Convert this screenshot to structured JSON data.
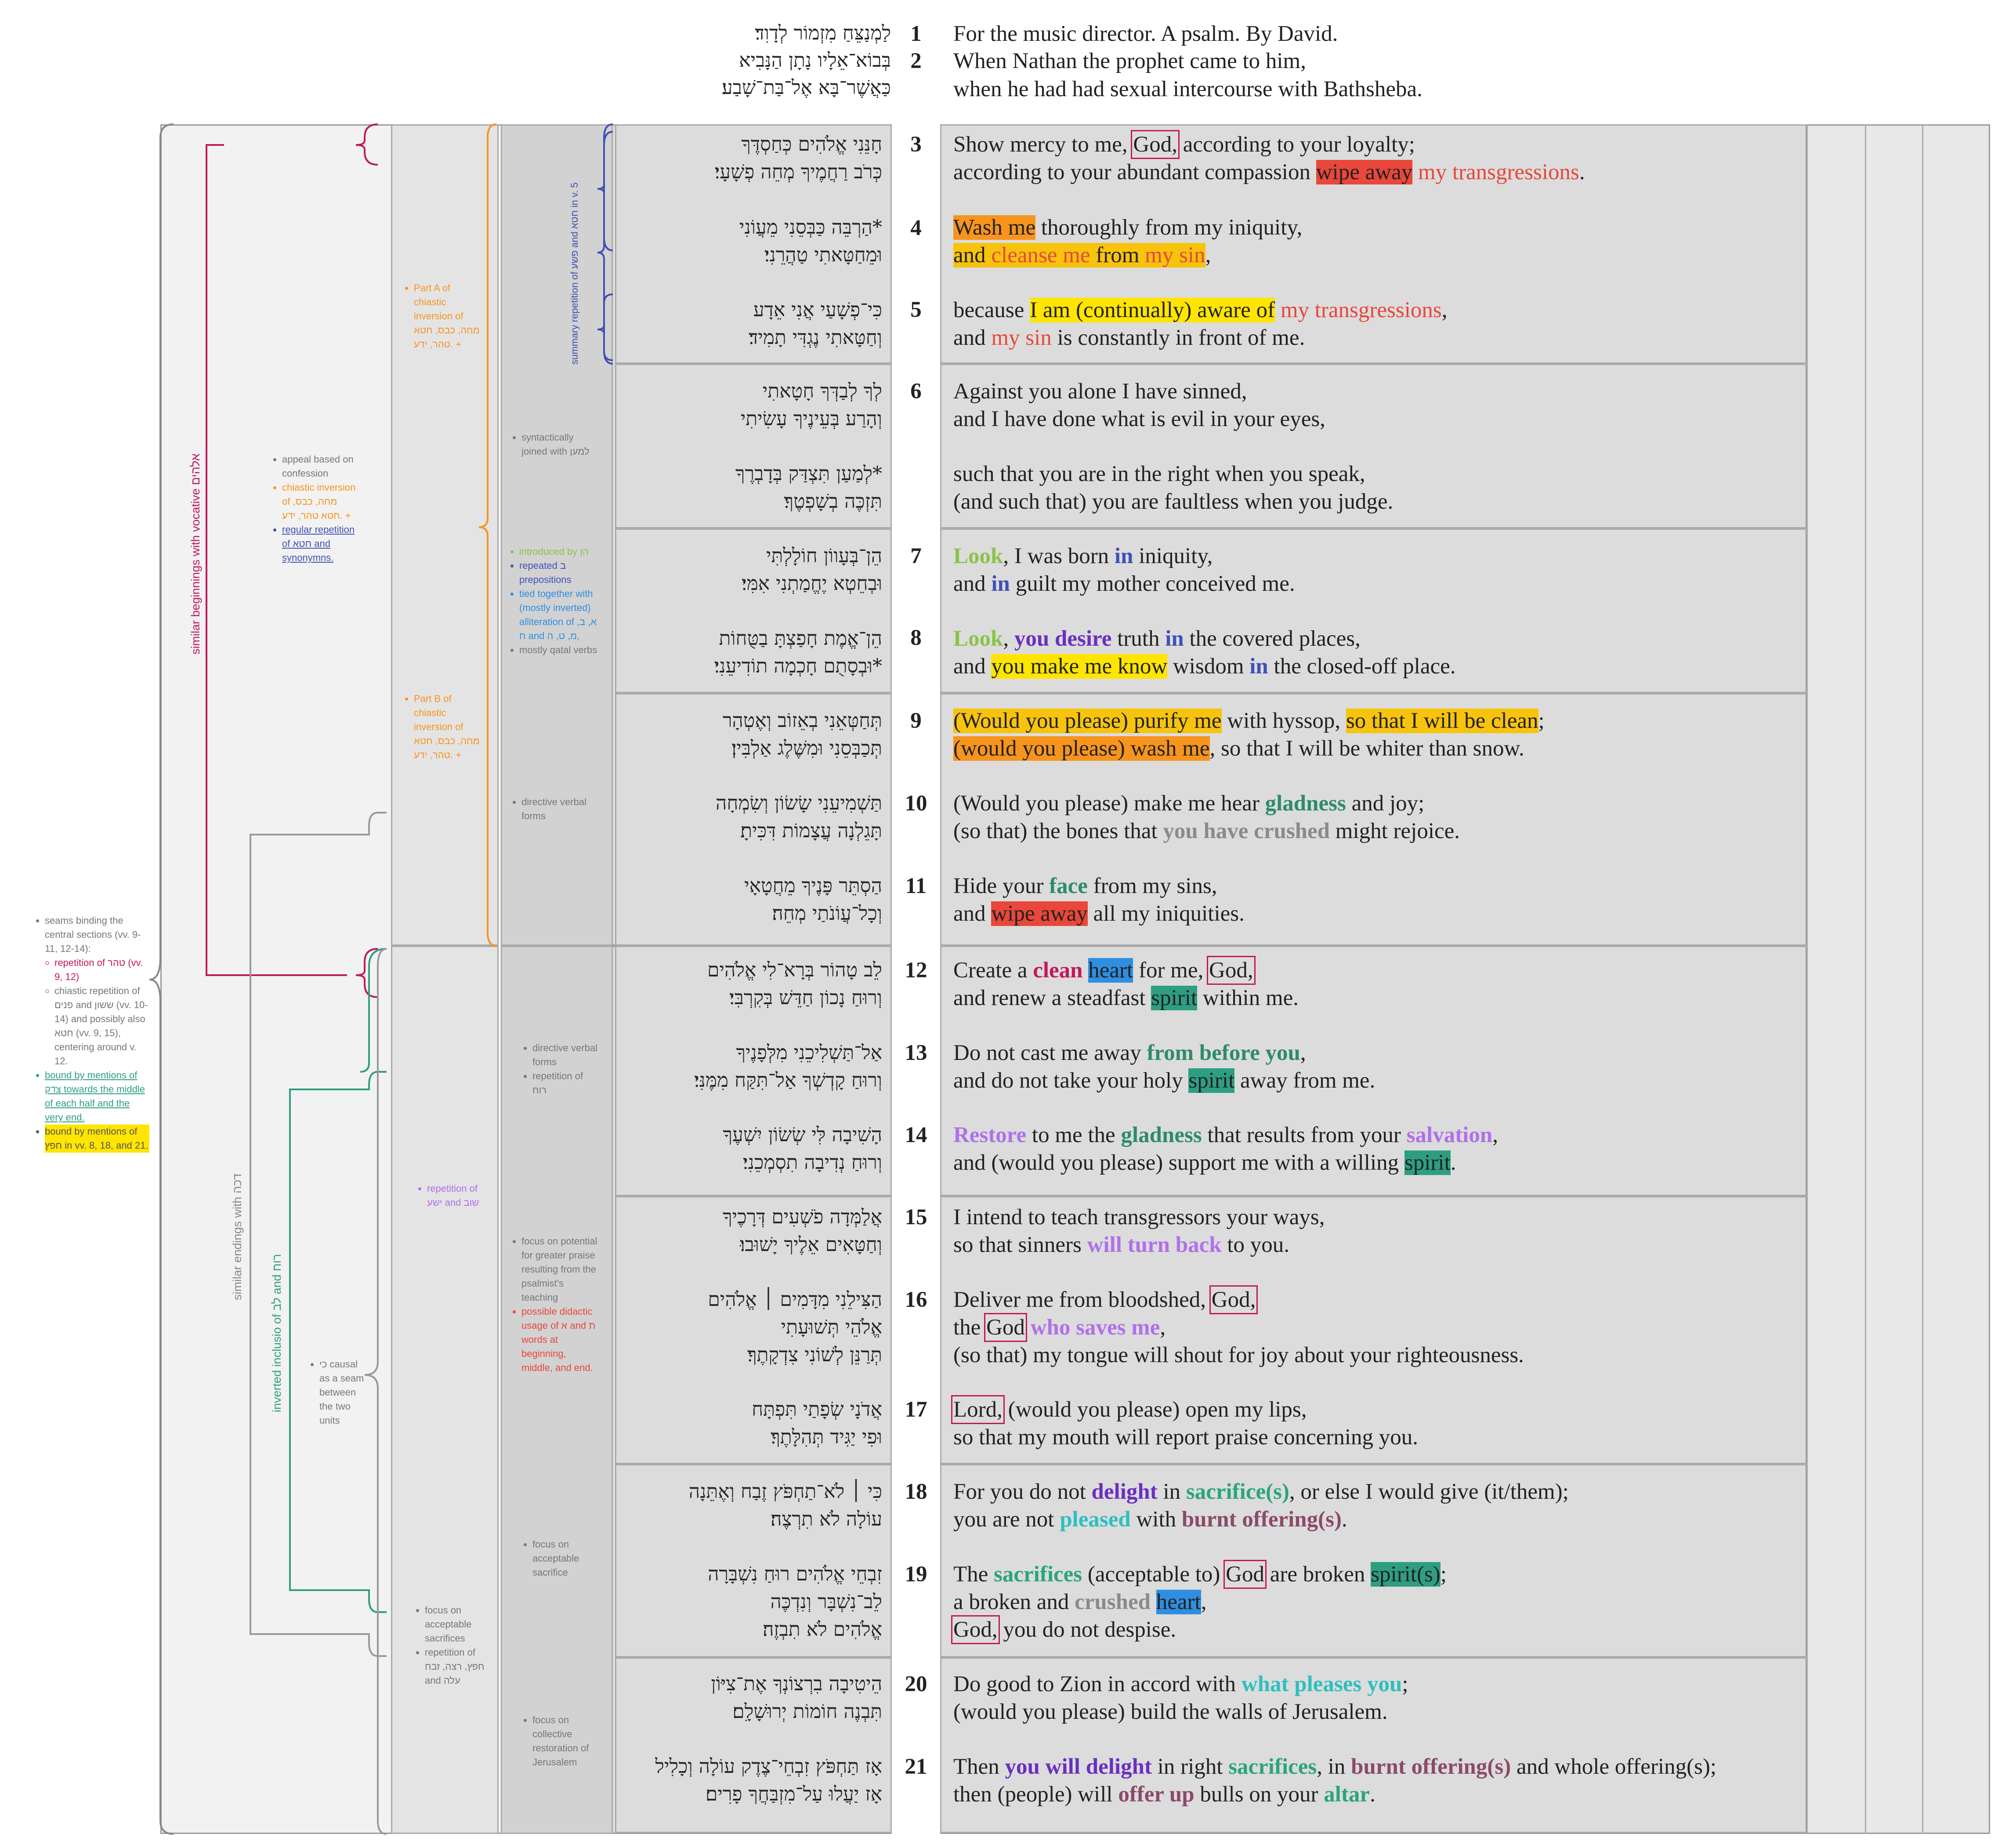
{
  "header": [
    {
      "n": "1",
      "he": "לַמְנַצֵּחַ מִזְמוֹר לְדָוִד׃",
      "en": "For the music director. A psalm. By David."
    },
    {
      "n": "2",
      "he": "בְּבוֹא־אֵלָיו נָתָן הַנָּבִיא",
      "en": "When Nathan the prophet came to him,"
    },
    {
      "n": "",
      "he": "כַּאֲשֶׁר־בָּא אֶל־בַּת־שָׁבַע׃",
      "en": "when he had had sexual intercourse with Bathsheba."
    }
  ],
  "hebrew": {
    "v3": [
      "חָנֵּנִי אֱלֹהִים כְּחַסְדֶּךָ",
      "כְּרֹב רַחֲמֶיךָ מְחֵה פְשָׁעָי׃"
    ],
    "v4": [
      "*הַרְבֵּה כַּבְּסֵנִי מֵעֲוֹנִי",
      "וּמֵחַטָּאתִי טַהֲרֵנִי׃"
    ],
    "v5": [
      "כִּי־פְשָׁעַי אֲנִי אֵדָע",
      "וְחַטָּאתִי נֶגְדִּי תָמִיד׃"
    ],
    "v6a": [
      "לְךָ לְבַדְּךָ חָטָאתִי",
      "וְהָרַע בְּעֵינֶיךָ עָשִׂיתִי"
    ],
    "v6b": [
      "*לְמַעַן תִּצְדַּק בְּדָבְרֶךָ",
      "תִּזְכֶּה בְשָׁפְטֶךָ׃"
    ],
    "v7": [
      "הֵן־בְּעָווֹן חוֹלָלְתִּי",
      "וּבְחֵטְא יֶחֱמַתְנִי אִמִּי׃"
    ],
    "v8": [
      "הֵן־אֱמֶת חָפַצְתָּ בַטֻּחוֹת",
      "*וּבְסָתֻם חָכְמָה תוֹדִיעֵנִי׃"
    ],
    "v9": [
      "תְּחַטְּאֵנִי בְאֵזוֹב וְאֶטְהָר",
      "תְּכַבְּסֵנִי וּמִשֶּׁלֶג אַלְבִּין׃"
    ],
    "v10": [
      "תַּשְׁמִיעֵנִי שָׂשׂוֹן וְשִׂמְחָה",
      "תָּגֵלְנָה עֲצָמוֹת דִּכִּיתָ׃"
    ],
    "v11": [
      "הַסְתֵּר פָּנֶיךָ מֵחֲטָאָי",
      "וְכָל־עֲוֹנֹתַי מְחֵה׃"
    ],
    "v12": [
      "לֵב טָהוֹר בְּרָא־לִי אֱלֹהִים",
      "וְרוּחַ נָכוֹן חַדֵּשׁ בְּקִרְבִּי׃"
    ],
    "v13": [
      "אַל־תַּשְׁלִיכֵנִי מִלְּפָנֶיךָ",
      "וְרוּחַ קָדְשְׁךָ אַל־תִּקַּח מִמֶּנִּי׃"
    ],
    "v14": [
      "הָשִׁיבָה לִּי שְׂשׂוֹן יִשְׁעֶךָ",
      "וְרוּחַ נְדִיבָה תִסְמְכֵנִי׃"
    ],
    "v15": [
      "אֲלַמְּדָה פֹשְׁעִים דְּרָכֶיךָ",
      "וְחַטָּאִים אֵלֶיךָ יָשׁוּבוּ׃"
    ],
    "v16": [
      "הַצִּילֵנִי מִדָּמִים ׀ אֱלֹהִים",
      "אֱלֹהֵי תְּשׁוּעָתִי",
      "תְּרַנֵּן לְשׁוֹנִי צִדְקָתֶךָ׃"
    ],
    "v17": [
      "אֲדֹנָי שְׂפָתַי תִּפְתָּח",
      "וּפִי יַגִּיד תְּהִלָּתֶךָ׃"
    ],
    "v18": [
      "כִּי ׀ לֹא־תַחְפֹּץ זֶבַח וְאֶתֵּנָה",
      "עוֹלָה לֹא תִרְצֶה׃"
    ],
    "v19": [
      "זִבְחֵי אֱלֹהִים רוּחַ נִשְׁבָּרָה",
      "לֵב־נִשְׁבָּר וְנִדְכֶּה",
      "אֱלֹהִים לֹא תִבְזֶה׃"
    ],
    "v20": [
      "הֵיטִיבָה בִרְצוֹנְךָ אֶת־צִיּוֹן",
      "תִּבְנֶה חוֹמוֹת יְרוּשָׁלִָם׃"
    ],
    "v21": [
      "אָז תַּחְפֹּץ זִבְחֵי־צֶדֶק עוֹלָה וְכָלִיל",
      "אָז יַעֲלוּ עַל־מִזְבַּחֲךָ פָרִים׃"
    ]
  },
  "verse_numbers": [
    "3",
    "4",
    "5",
    "6",
    "7",
    "8",
    "9",
    "10",
    "11",
    "12",
    "13",
    "14",
    "15",
    "16",
    "17",
    "18",
    "19",
    "20",
    "21"
  ],
  "english": {
    "v3a": [
      "Show mercy to me, ",
      "God,",
      " according to your loyalty;"
    ],
    "v3b": [
      "according to your abundant compassion ",
      "wipe away",
      " ",
      "my transgressions",
      "."
    ],
    "v4a": [
      "Wash me",
      " thoroughly from my iniquity,"
    ],
    "v4b": [
      "and ",
      "cleanse me",
      " from ",
      "my sin",
      ","
    ],
    "v5a": [
      "because ",
      "I am (continually) aware of",
      " ",
      "my transgressions",
      ","
    ],
    "v5b": [
      "and ",
      "my sin",
      " is constantly in front of me."
    ],
    "v6a": "Against you alone I have sinned,",
    "v6b": "and I have done what is evil in your eyes,",
    "v6c": "such that you are in the right when you speak,",
    "v6d": "(and such that) you are faultless when you judge.",
    "v7a": [
      "Look",
      ", I was born ",
      "in",
      " iniquity,"
    ],
    "v7b": [
      "and ",
      "in",
      " guilt my mother conceived me."
    ],
    "v8a": [
      "Look",
      ", ",
      "you desire",
      " truth ",
      "in",
      " the covered places,"
    ],
    "v8b": [
      "and ",
      "you make me know",
      " wisdom ",
      "in",
      " the closed-off place."
    ],
    "v9a": [
      "(Would you please) purify me",
      " with hyssop, ",
      "so that I will be clean",
      ";"
    ],
    "v9b": [
      "(would you please) wash me",
      ", so that I will be whiter than snow."
    ],
    "v10a": [
      "(Would you please) make me hear ",
      "gladness",
      " and joy;"
    ],
    "v10b": [
      "(so that) the bones that ",
      "you have crushed",
      " might rejoice."
    ],
    "v11a": [
      "Hide your ",
      "face",
      " from my sins,"
    ],
    "v11b": [
      "and ",
      "wipe away",
      " all my iniquities."
    ],
    "v12a": [
      "Create a ",
      "clean",
      " ",
      "heart",
      " for me, ",
      "God,"
    ],
    "v12b": [
      "and renew a steadfast ",
      "spirit",
      " within me."
    ],
    "v13a": [
      "Do not cast me away ",
      "from before you",
      ","
    ],
    "v13b": [
      "and do not take your holy ",
      "spirit",
      " away from me."
    ],
    "v14a": [
      "Restore",
      " to me the ",
      "gladness",
      " that results from your ",
      "salvation",
      ","
    ],
    "v14b": [
      "and (would you please) support me with a willing ",
      "spirit",
      "."
    ],
    "v15a": "I intend to teach transgressors your ways,",
    "v15b": [
      "so that sinners ",
      "will turn back",
      " to you."
    ],
    "v16a": [
      "Deliver me from bloodshed, ",
      "God,"
    ],
    "v16b": [
      "the ",
      "God",
      " ",
      "who saves me",
      ","
    ],
    "v16c": "(so that) my tongue will shout for joy about your righteousness.",
    "v17a": [
      "Lord,",
      " (would you please) open my lips,"
    ],
    "v17b": "so that my mouth will report praise concerning you.",
    "v18a": [
      "For you do not ",
      "delight",
      " in ",
      "sacrifice(s)",
      ", or else I would give (it/them);"
    ],
    "v18b": [
      "you are not ",
      "pleased",
      " with ",
      "burnt offering(s)",
      "."
    ],
    "v19a": [
      "The ",
      "sacrifices",
      " (acceptable to) ",
      "God",
      " are broken ",
      "spirit(s)",
      ";"
    ],
    "v19b": [
      "a broken and ",
      "crushed",
      " ",
      "heart",
      ","
    ],
    "v19c": [
      "God,",
      " you do not despise."
    ],
    "v20a": [
      "Do good to Zion in accord with ",
      "what pleases you",
      ";"
    ],
    "v20b": "(would you please) build the walls of Jerusalem.",
    "v21a": [
      "Then ",
      "you will delight",
      " in right ",
      "sacrifices",
      ", in ",
      "burnt offering(s)",
      " and whole offering(s);"
    ],
    "v21b": [
      "then (people) will ",
      "offer up",
      " bulls on your ",
      "altar",
      "."
    ]
  },
  "notes": {
    "seams": {
      "title": "seams binding the central sections (vv. 9-11, 12-14):",
      "sub1": "repetition of טהר (vv. 9, 12)",
      "sub2": "chiastic repetition of פנים and ששון (vv. 10-14) and possibly also חטא (vv. 9, 15), centering around v. 12.",
      "bound_sdq": "bound by mentions of צדק towards the middle of each half and the very end.",
      "bound_hps": "bound by mentions of חפץ in vv. 8, 18, and 21."
    },
    "vertical": {
      "vocative": "similar beginnings with vocative אלהים",
      "dakah": "similar endings with דכה",
      "inclusio": "inverted inclusio of לב and רוח",
      "summary": "summary repetition of פשע and חטא in v. 5"
    },
    "partA": "Part A of chiastic inversion of מחה, כבס, חטא טהר, ידע. +",
    "partB": "Part B of chiastic inversion of מחה, כבס, חטא טהר, ידע. +",
    "appeal": {
      "l1": "appeal based on confession",
      "l2": "chiastic inversion of מחה, כבס, חטא טהר, ידע. +",
      "l3": "regular repetition of חטא and synonymns."
    },
    "syntactic": "syntactically joined with למען",
    "introduced": {
      "l1": "introduced by הן",
      "l2": "repeated ב prepositions",
      "l3": "tied together with (mostly inverted) alliteration of א, ב, ח and מ, ט, ה,",
      "l4": "mostly qatal verbs"
    },
    "directive1": "directive verbal forms",
    "directive2": {
      "l1": "directive verbal forms",
      "l2": "repetition of רוח"
    },
    "rep_shub": "repetition of ישע and שוב",
    "causal": "כי causal as a seam between the two units",
    "focus_praise": {
      "l1": "focus on potential for greater praise resulting from the psalmist's teaching",
      "l2": "possible didactic usage of א and ת words at beginning, middle, and end."
    },
    "focus_accept1": "focus on acceptable sacrifice",
    "focus_accept2": {
      "l1": "focus on acceptable sacrifices",
      "l2": "repetition of חפץ, רצה, זבח and עלה"
    },
    "focus_collective": "focus on collective restoration of Jerusalem"
  },
  "colors": {
    "red": "#e8473a",
    "orange": "#f7941d",
    "yellow": "#ffe500",
    "gold": "#f7c30d",
    "blue": "#2e8ee0",
    "teal": "#2e9e82",
    "magenta": "#c2185b",
    "purple": "#6a2fc0",
    "lilac": "#b070ea",
    "green": "#8bc34a",
    "navy": "#3f51b5",
    "grey_panel": "#d9d9d9"
  }
}
